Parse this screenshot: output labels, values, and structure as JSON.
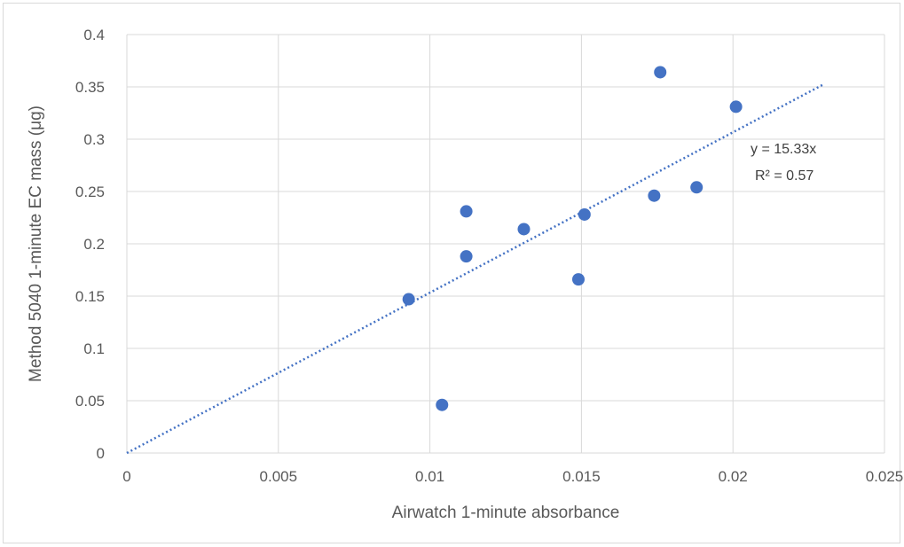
{
  "chart_data": {
    "type": "scatter",
    "title": "",
    "xlabel": "Airwatch 1-minute absorbance",
    "ylabel": "Method 5040 1-minute EC mass (μg)",
    "xlim": [
      0,
      0.025
    ],
    "ylim": [
      0,
      0.4
    ],
    "x_ticks": [
      "0",
      "0.005",
      "0.01",
      "0.015",
      "0.02",
      "0.025"
    ],
    "y_ticks": [
      "0",
      "0.05",
      "0.1",
      "0.15",
      "0.2",
      "0.25",
      "0.3",
      "0.35",
      "0.4"
    ],
    "grid": true,
    "legend": "none",
    "series": [
      {
        "points": [
          {
            "x": 0.0093,
            "y": 0.147
          },
          {
            "x": 0.0104,
            "y": 0.046
          },
          {
            "x": 0.0112,
            "y": 0.231
          },
          {
            "x": 0.0112,
            "y": 0.188
          },
          {
            "x": 0.0131,
            "y": 0.214
          },
          {
            "x": 0.0149,
            "y": 0.166
          },
          {
            "x": 0.0151,
            "y": 0.228
          },
          {
            "x": 0.0174,
            "y": 0.246
          },
          {
            "x": 0.0176,
            "y": 0.364
          },
          {
            "x": 0.0188,
            "y": 0.254
          },
          {
            "x": 0.0201,
            "y": 0.331
          }
        ],
        "color": "#4472c4"
      }
    ],
    "trendline": {
      "type": "linear-through-origin",
      "slope": 15.33,
      "x_range": [
        0,
        0.023
      ],
      "style": "dotted",
      "color": "#4472c4",
      "equation": "y = 15.33x",
      "r_squared": "R² = 0.57"
    },
    "colors": {
      "gridline": "#d9d9d9",
      "text": "#595959"
    }
  }
}
